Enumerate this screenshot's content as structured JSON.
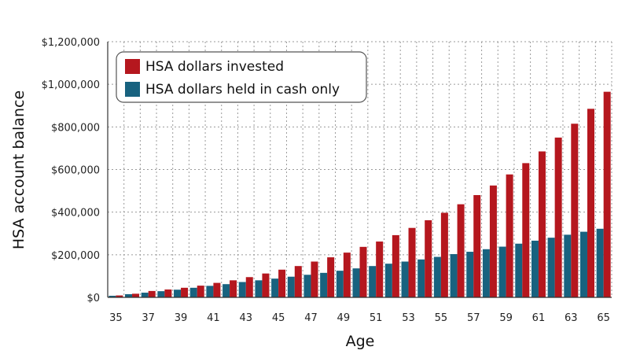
{
  "chart_data": {
    "type": "bar",
    "title": "",
    "xlabel": "Age",
    "ylabel": "HSA account balance",
    "ylim": [
      0,
      1200000
    ],
    "yticks": [
      0,
      200000,
      400000,
      600000,
      800000,
      1000000,
      1200000
    ],
    "ytick_labels": [
      "$0",
      "$200,000",
      "$400,000",
      "$600,000",
      "$800,000",
      "$1,000,000",
      "$1,200,000"
    ],
    "grid": true,
    "legend_position": "top-left",
    "categories": [
      35,
      36,
      37,
      38,
      39,
      40,
      41,
      42,
      43,
      44,
      45,
      46,
      47,
      48,
      49,
      50,
      51,
      52,
      53,
      54,
      55,
      56,
      57,
      58,
      59,
      60,
      61,
      62,
      63,
      64,
      65
    ],
    "xtick_labels": [
      "35",
      "37",
      "39",
      "41",
      "43",
      "45",
      "47",
      "49",
      "51",
      "53",
      "55",
      "57",
      "59",
      "61",
      "63",
      "65"
    ],
    "series": [
      {
        "name": "HSA dollars invested",
        "color": "#b5171e",
        "values": [
          9000,
          17000,
          30000,
          37000,
          45000,
          55000,
          68000,
          80000,
          95000,
          112000,
          130000,
          147000,
          168000,
          188000,
          210000,
          237000,
          262000,
          292000,
          326000,
          362000,
          397000,
          437000,
          480000,
          525000,
          577000,
          630000,
          685000,
          750000,
          815000,
          885000,
          965000
        ]
      },
      {
        "name": "HSA dollars held in cash only",
        "color": "#18627f",
        "values": [
          7500,
          15000,
          22000,
          29000,
          36000,
          45000,
          54000,
          62000,
          72000,
          80000,
          88000,
          97000,
          106000,
          115000,
          125000,
          136000,
          147000,
          158000,
          168000,
          178000,
          190000,
          203000,
          214000,
          226000,
          238000,
          252000,
          266000,
          280000,
          294000,
          308000,
          322000
        ]
      }
    ]
  }
}
